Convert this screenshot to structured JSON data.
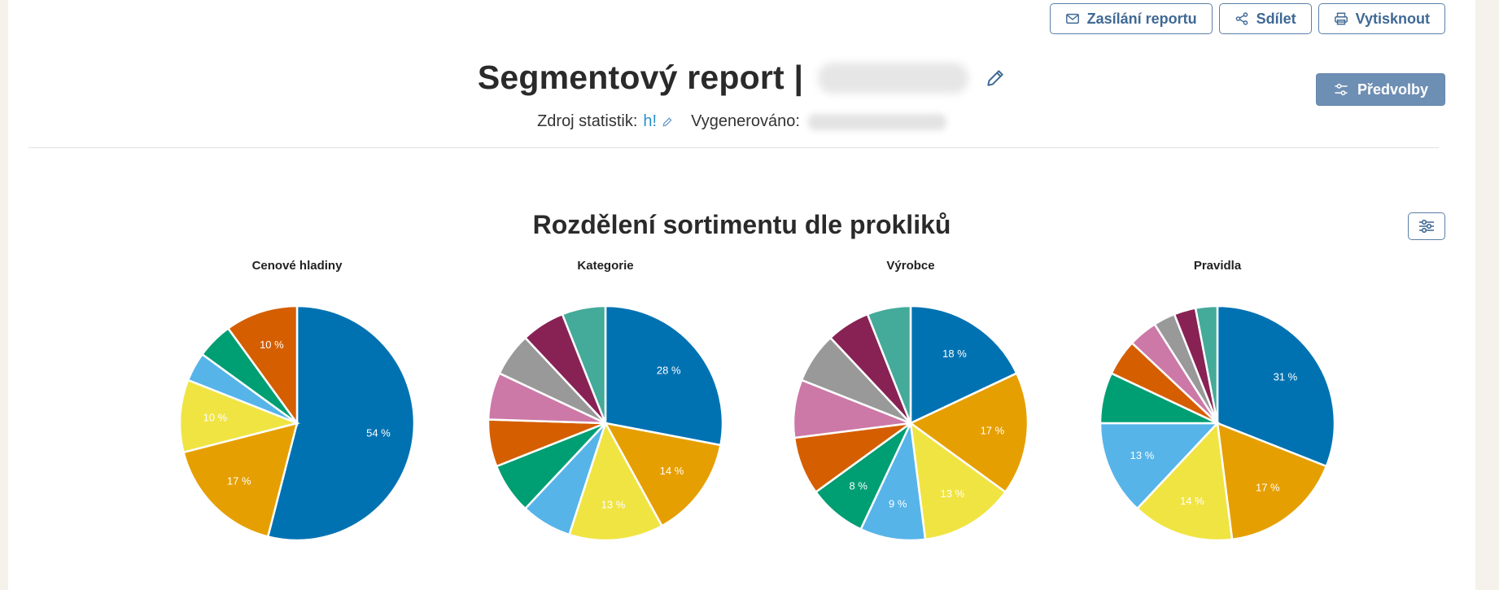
{
  "toolbar": {
    "report_mail_label": "Zasílání reportu",
    "share_label": "Sdílet",
    "print_label": "Vytisknout",
    "presets_label": "Předvolby"
  },
  "header": {
    "title": "Segmentový report |",
    "source_label": "Zdroj statistik:",
    "source_value": "h!",
    "generated_label": "Vygenerováno:"
  },
  "section": {
    "title": "Rozdělení sortimentu dle prokliků"
  },
  "colors": {
    "palette": [
      "#0072b2",
      "#e69f00",
      "#f0e442",
      "#56b4e9",
      "#009e73",
      "#d55e00",
      "#cc79a7",
      "#999999",
      "#882255",
      "#44aa99"
    ],
    "accent": "#3f6994"
  },
  "chart_data": [
    {
      "type": "pie",
      "title": "Cenové hladiny",
      "slices": [
        {
          "value": 54,
          "label": "54 %",
          "color": "#0072b2"
        },
        {
          "value": 17,
          "label": "17 %",
          "color": "#e69f00"
        },
        {
          "value": 10,
          "label": "10 %",
          "color": "#f0e442"
        },
        {
          "value": 4,
          "label": "",
          "color": "#56b4e9"
        },
        {
          "value": 5,
          "label": "",
          "color": "#009e73"
        },
        {
          "value": 10,
          "label": "10 %",
          "color": "#d55e00"
        }
      ]
    },
    {
      "type": "pie",
      "title": "Kategorie",
      "slices": [
        {
          "value": 28,
          "label": "28 %",
          "color": "#0072b2"
        },
        {
          "value": 14,
          "label": "14 %",
          "color": "#e69f00"
        },
        {
          "value": 13,
          "label": "13 %",
          "color": "#f0e442"
        },
        {
          "value": 7,
          "label": "",
          "color": "#56b4e9"
        },
        {
          "value": 7,
          "label": "",
          "color": "#009e73"
        },
        {
          "value": 6.5,
          "label": "",
          "color": "#d55e00"
        },
        {
          "value": 6.5,
          "label": "",
          "color": "#cc79a7"
        },
        {
          "value": 6,
          "label": "",
          "color": "#999999"
        },
        {
          "value": 6,
          "label": "",
          "color": "#882255"
        },
        {
          "value": 6,
          "label": "",
          "color": "#44aa99"
        }
      ]
    },
    {
      "type": "pie",
      "title": "Výrobce",
      "slices": [
        {
          "value": 18,
          "label": "18 %",
          "color": "#0072b2"
        },
        {
          "value": 17,
          "label": "17 %",
          "color": "#e69f00"
        },
        {
          "value": 13,
          "label": "13 %",
          "color": "#f0e442"
        },
        {
          "value": 9,
          "label": "9 %",
          "color": "#56b4e9"
        },
        {
          "value": 8,
          "label": "8 %",
          "color": "#009e73"
        },
        {
          "value": 8,
          "label": "",
          "color": "#d55e00"
        },
        {
          "value": 8,
          "label": "",
          "color": "#cc79a7"
        },
        {
          "value": 7,
          "label": "",
          "color": "#999999"
        },
        {
          "value": 6,
          "label": "",
          "color": "#882255"
        },
        {
          "value": 6,
          "label": "",
          "color": "#44aa99"
        }
      ]
    },
    {
      "type": "pie",
      "title": "Pravidla",
      "slices": [
        {
          "value": 31,
          "label": "31 %",
          "color": "#0072b2"
        },
        {
          "value": 17,
          "label": "17 %",
          "color": "#e69f00"
        },
        {
          "value": 14,
          "label": "14 %",
          "color": "#f0e442"
        },
        {
          "value": 13,
          "label": "13 %",
          "color": "#56b4e9"
        },
        {
          "value": 7,
          "label": "",
          "color": "#009e73"
        },
        {
          "value": 5,
          "label": "",
          "color": "#d55e00"
        },
        {
          "value": 4,
          "label": "",
          "color": "#cc79a7"
        },
        {
          "value": 3,
          "label": "",
          "color": "#999999"
        },
        {
          "value": 3,
          "label": "",
          "color": "#882255"
        },
        {
          "value": 3,
          "label": "",
          "color": "#44aa99"
        }
      ]
    }
  ]
}
